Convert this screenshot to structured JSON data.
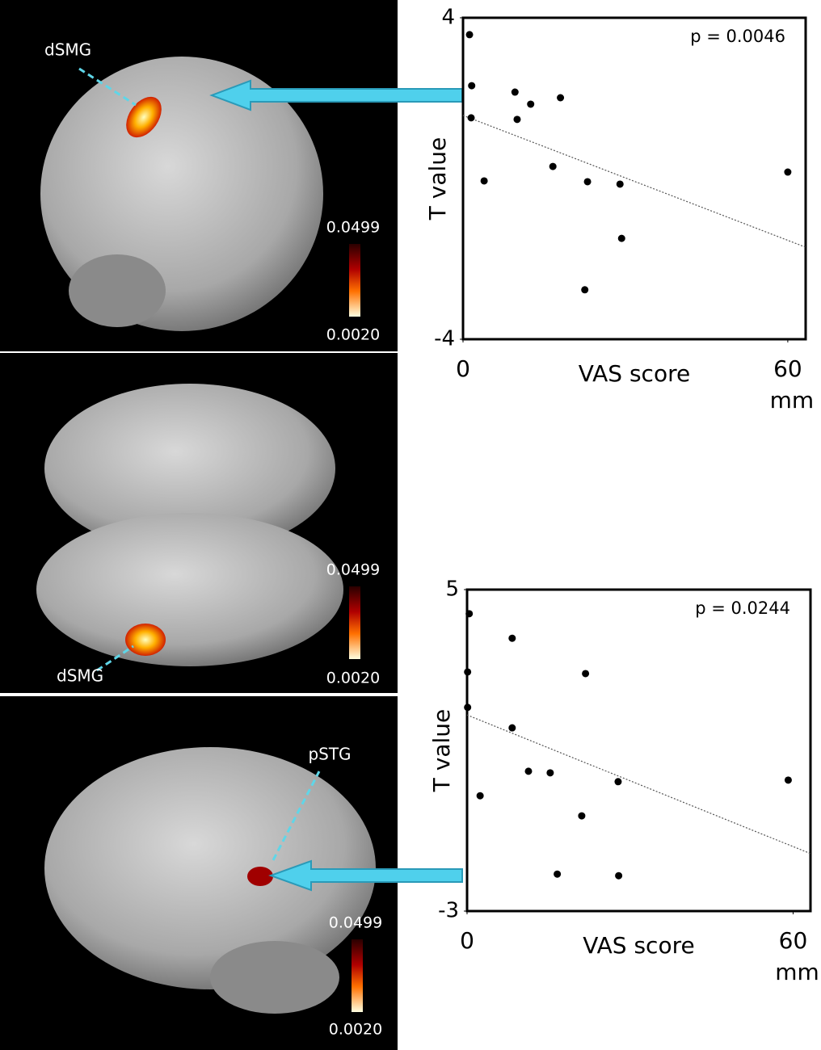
{
  "brain_panels": [
    {
      "label": "dSMG",
      "colorbar": [
        "0.0499",
        "0.0020"
      ]
    },
    {
      "label": "dSMG",
      "colorbar": [
        "0.0499",
        "0.0020"
      ]
    },
    {
      "label": "pSTG",
      "colorbar": [
        "0.0499",
        "0.0020"
      ]
    }
  ],
  "chart_data": [
    {
      "type": "scatter",
      "annotation": "p = 0.0046",
      "y_label": "T value",
      "x_label": "VAS score",
      "x_unit": "mm",
      "color": "#000000",
      "x": [
        1.2,
        1.6,
        1.5,
        3.9,
        9.6,
        10,
        12.5,
        18,
        16.6,
        23,
        29,
        29.3,
        22.5,
        60
      ],
      "values": [
        3.58,
        2.31,
        1.51,
        -0.06,
        2.15,
        1.47,
        1.85,
        2.01,
        0.3,
        -0.08,
        -0.14,
        -1.49,
        -2.77,
        0.16
      ],
      "trend": {
        "x": [
          0,
          63.3
        ],
        "y": [
          1.57,
          -1.71
        ]
      },
      "xlim": [
        0,
        63.3
      ],
      "ylim": [
        -4,
        4
      ],
      "xticks": [
        0,
        60
      ],
      "yticks": [
        -4,
        4
      ]
    },
    {
      "type": "scatter",
      "annotation": "p = 0.0244",
      "y_label": "T value",
      "x_label": "VAS score",
      "x_unit": "mm",
      "color": "#000000",
      "x": [
        0.4,
        0.1,
        0.1,
        2.4,
        8.3,
        8.3,
        11.3,
        15.3,
        21.8,
        21.1,
        16.6,
        27.8,
        27.9,
        59.1
      ],
      "values": [
        4.4,
        2.95,
        2.07,
        -0.13,
        3.79,
        1.56,
        0.48,
        0.44,
        2.91,
        -0.63,
        -2.08,
        0.22,
        -2.12,
        0.26
      ],
      "trend": {
        "x": [
          0,
          63.2
        ],
        "y": [
          1.88,
          -1.57
        ]
      },
      "xlim": [
        0,
        63.2
      ],
      "ylim": [
        -3,
        5
      ],
      "xticks": [
        0,
        60
      ],
      "yticks": [
        -3,
        5
      ]
    }
  ]
}
